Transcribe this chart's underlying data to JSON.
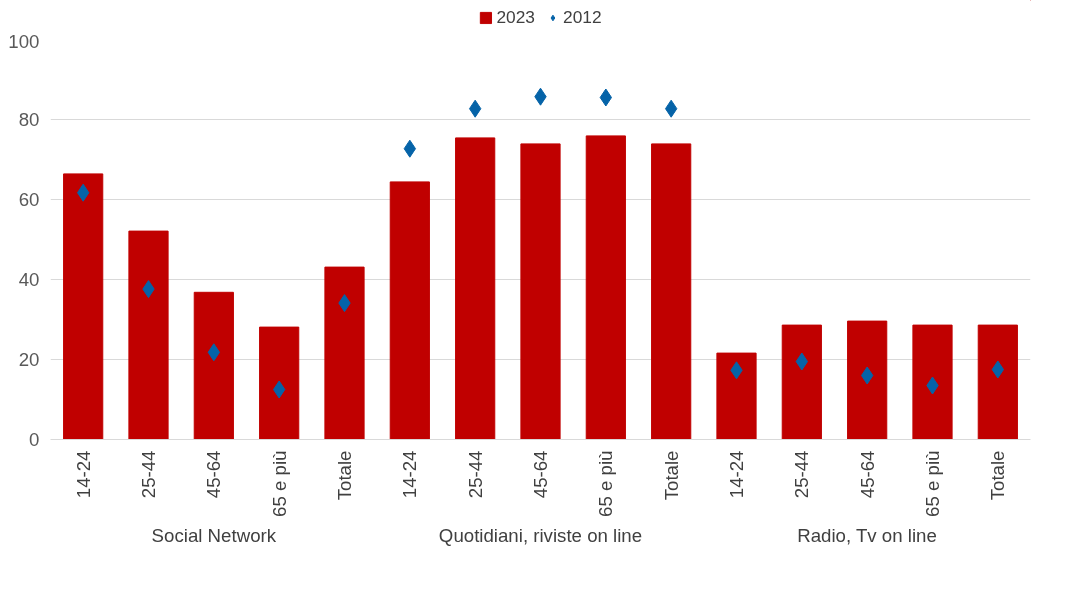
{
  "chart_data": {
    "type": "bar",
    "categories": [
      "14-24",
      "25-44",
      "45-64",
      "65 e più",
      "Totale",
      "14-24",
      "25-44",
      "45-64",
      "65 e più",
      "Totale",
      "14-24",
      "25-44",
      "45-64",
      "65 e più",
      "Totale"
    ],
    "series": [
      {
        "name": "2023",
        "color": "#c00000",
        "values": [
          66.4,
          52.1,
          36.8,
          28.1,
          43.1,
          64.4,
          75.4,
          73.9,
          75.9,
          73.9,
          21.6,
          28.6,
          29.6,
          28.6,
          28.6
        ]
      },
      {
        "name": "2012",
        "type": "scatter",
        "color": "#0563a8",
        "values": [
          61.7,
          37.6,
          21.8,
          12.5,
          34.1,
          72.7,
          82.7,
          85.7,
          85.5,
          82.7,
          17.3,
          19.5,
          16.0,
          13.5,
          17.5
        ]
      }
    ],
    "annotations": [
      "Social Network",
      "Quotidiani, riviste on line",
      "Radio, Tv on line"
    ],
    "ylim": [
      0,
      100
    ],
    "yticks": [
      0,
      20,
      40,
      60,
      80,
      100
    ],
    "grid": "y",
    "legend": "top",
    "marker": "diamond"
  }
}
